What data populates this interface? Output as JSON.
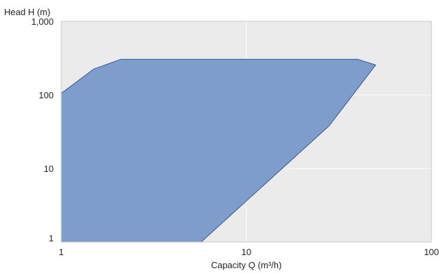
{
  "chart_data": {
    "type": "area",
    "xlabel": "Capacity Q (m³/h)",
    "ylabel": "Head H (m)",
    "xscale": "log",
    "yscale": "log",
    "xlim": [
      1,
      100
    ],
    "ylim": [
      1,
      1000
    ],
    "x_ticks": [
      {
        "value": 1,
        "label": "1"
      },
      {
        "value": 10,
        "label": "10"
      },
      {
        "value": 100,
        "label": "100"
      }
    ],
    "y_ticks": [
      {
        "value": 1,
        "label": "1"
      },
      {
        "value": 10,
        "label": "10"
      },
      {
        "value": 100,
        "label": "100"
      },
      {
        "value": 1000,
        "label": "1,000"
      }
    ],
    "grid": true,
    "series": [
      {
        "color": "#7f9dcb",
        "edge_color": "#2e5597",
        "points": [
          {
            "x": 1,
            "y": 1
          },
          {
            "x": 1,
            "y": 105
          },
          {
            "x": 1.5,
            "y": 225
          },
          {
            "x": 2.1,
            "y": 305
          },
          {
            "x": 40,
            "y": 305
          },
          {
            "x": 50,
            "y": 255
          },
          {
            "x": 28,
            "y": 38
          },
          {
            "x": 5.7,
            "y": 1
          }
        ]
      }
    ],
    "colors": {
      "plot_background": "#ebebeb",
      "grid": "#ffffff",
      "frame": "#c8c8c8"
    }
  }
}
